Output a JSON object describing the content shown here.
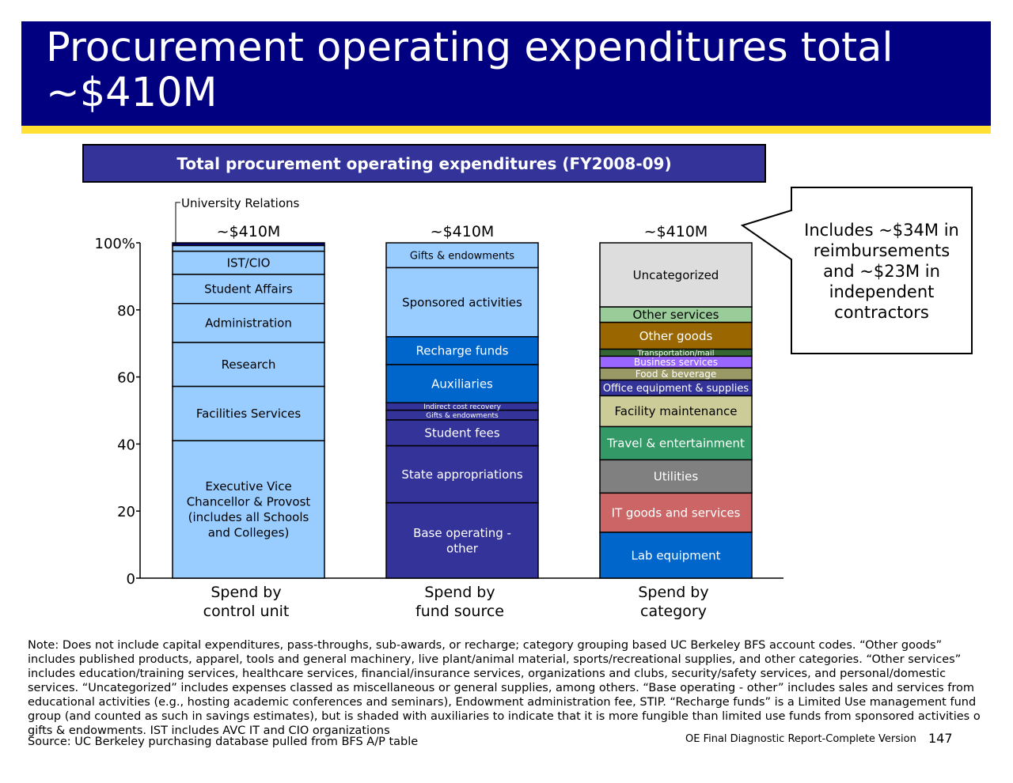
{
  "slide": {
    "title": "Procurement operating expenditures total ~$410M",
    "chart_title": "Total procurement operating expenditures (FY2008-09)",
    "callout": "Includes ~$34M in\nreimbursements\nand ~$23M in\nindependent\ncontractors",
    "note_lines": [
      "Note: Does not include capital expenditures, pass-throughs, sub-awards, or recharge; category grouping based UC Berkeley BFS account codes. “Other goods”",
      "includes published products, apparel, tools and general machinery, live plant/animal material, sports/recreational supplies, and other categories. “Other services”",
      "includes education/training services, healthcare services, financial/insurance services, organizations and clubs, security/safety services, and personal/domestic",
      "services. “Uncategorized” includes expenses classed as miscellaneous or general supplies, among others. “Base operating - other” includes sales and services from",
      "educational activities (e.g., hosting academic conferences and seminars), Endowment administration fee, STIP. “Recharge funds” is a Limited Use management fund",
      "group (and counted as such in savings estimates), but is shaded with auxiliaries to indicate that it is more fungible than limited use funds from sponsored activities o",
      "gifts & endowments. IST includes AVC IT and CIO organizations"
    ],
    "source": "Source: UC Berkeley purchasing database pulled from BFS A/P table",
    "footer": "OE Final Diagnostic Report-Complete Version",
    "page_number": "147"
  },
  "colors": {
    "title_bar": "#000080",
    "title_rule": "#ffe033",
    "chart_title_bg": "#333399"
  },
  "chart_data": {
    "type": "bar",
    "stacked": true,
    "percent_axis": true,
    "ylim": [
      0,
      100
    ],
    "yticks": [
      "0",
      "20",
      "40",
      "60",
      "80",
      "100%"
    ],
    "ytick_values": [
      0,
      20,
      40,
      60,
      80,
      100
    ],
    "columns": [
      {
        "label": [
          "Spend by",
          "control unit"
        ],
        "total_label": "~$410M",
        "segments": [
          {
            "name": [
              "Executive Vice",
              "Chancellor & Provost",
              "(includes all Schools",
              "and Colleges)"
            ],
            "value": 41.0,
            "color": "#99ccff",
            "text_color": "#000000",
            "font_size": 15
          },
          {
            "name": [
              "Facilities Services"
            ],
            "value": 16.2,
            "color": "#99ccff",
            "text_color": "#000000",
            "font_size": 15
          },
          {
            "name": [
              "Research"
            ],
            "value": 13.1,
            "color": "#99ccff",
            "text_color": "#000000",
            "font_size": 15
          },
          {
            "name": [
              "Administration"
            ],
            "value": 11.6,
            "color": "#99ccff",
            "text_color": "#000000",
            "font_size": 15
          },
          {
            "name": [
              "Student Affairs"
            ],
            "value": 8.7,
            "color": "#99ccff",
            "text_color": "#000000",
            "font_size": 15
          },
          {
            "name": [
              "IST/CIO"
            ],
            "value": 6.9,
            "color": "#99ccff",
            "text_color": "#000000",
            "font_size": 15
          },
          {
            "name": [
              ""
            ],
            "value": 1.7,
            "color": "#99ccff",
            "text_color": "#000000",
            "font_size": 10
          },
          {
            "name": [
              ""
            ],
            "value": 0.8,
            "color": "#000080",
            "text_color": "#ffffff",
            "font_size": 10
          }
        ],
        "annotation": "University Relations"
      },
      {
        "label": [
          "Spend by",
          "fund source"
        ],
        "total_label": "~$410M",
        "segments": [
          {
            "name": [
              "Base operating -",
              "other"
            ],
            "value": 22.5,
            "color": "#333399",
            "text_color": "#ffffff",
            "font_size": 15
          },
          {
            "name": [
              "State appropriations"
            ],
            "value": 17.0,
            "color": "#333399",
            "text_color": "#ffffff",
            "font_size": 15
          },
          {
            "name": [
              "Student fees"
            ],
            "value": 7.7,
            "color": "#333399",
            "text_color": "#ffffff",
            "font_size": 15
          },
          {
            "name": [
              "Gifts & endowments"
            ],
            "value": 2.9,
            "color": "#333399",
            "text_color": "#ffffff",
            "font_size": 9
          },
          {
            "name": [
              "Indirect cost recovery"
            ],
            "value": 2.2,
            "color": "#333399",
            "text_color": "#ffffff",
            "font_size": 9
          },
          {
            "name": [
              "Auxiliaries"
            ],
            "value": 11.4,
            "color": "#0066cc",
            "text_color": "#ffffff",
            "font_size": 15
          },
          {
            "name": [
              "Recharge funds"
            ],
            "value": 8.3,
            "color": "#0066cc",
            "text_color": "#ffffff",
            "font_size": 15
          },
          {
            "name": [
              "Sponsored activities"
            ],
            "value": 20.6,
            "color": "#99ccff",
            "text_color": "#000000",
            "font_size": 15
          },
          {
            "name": [
              "Gifts & endowments"
            ],
            "value": 7.4,
            "color": "#99ccff",
            "text_color": "#000000",
            "font_size": 13
          }
        ]
      },
      {
        "label": [
          "Spend by",
          "category"
        ],
        "total_label": "~$410M",
        "segments": [
          {
            "name": [
              "Lab equipment"
            ],
            "value": 13.7,
            "color": "#0066cc",
            "text_color": "#ffffff",
            "font_size": 15
          },
          {
            "name": [
              "IT goods and services"
            ],
            "value": 11.7,
            "color": "#cc6666",
            "text_color": "#ffffff",
            "font_size": 15
          },
          {
            "name": [
              "Utilities"
            ],
            "value": 9.9,
            "color": "#808080",
            "text_color": "#ffffff",
            "font_size": 15
          },
          {
            "name": [
              "Travel & entertainment"
            ],
            "value": 9.9,
            "color": "#339966",
            "text_color": "#ffffff",
            "font_size": 15
          },
          {
            "name": [
              "Facility maintenance"
            ],
            "value": 9.2,
            "color": "#cccc99",
            "text_color": "#000000",
            "font_size": 15
          },
          {
            "name": [
              "Office  equipment  & supplies"
            ],
            "value": 4.7,
            "color": "#333399",
            "text_color": "#ffffff",
            "font_size": 13
          },
          {
            "name": [
              "Food & beverage"
            ],
            "value": 3.6,
            "color": "#999966",
            "text_color": "#ffffff",
            "font_size": 12
          },
          {
            "name": [
              "Business services"
            ],
            "value": 3.5,
            "color": "#9966ff",
            "text_color": "#ffffff",
            "font_size": 12
          },
          {
            "name": [
              "Transportation/mail"
            ],
            "value": 2.1,
            "color": "#336633",
            "text_color": "#ffffff",
            "font_size": 10
          },
          {
            "name": [
              "Other goods"
            ],
            "value": 8.0,
            "color": "#996600",
            "text_color": "#ffffff",
            "font_size": 15
          },
          {
            "name": [
              "Other services"
            ],
            "value": 4.6,
            "color": "#99cc99",
            "text_color": "#000000",
            "font_size": 15
          },
          {
            "name": [
              "Uncategorized"
            ],
            "value": 19.1,
            "color": "#dddddd",
            "text_color": "#000000",
            "font_size": 15
          }
        ]
      }
    ]
  }
}
